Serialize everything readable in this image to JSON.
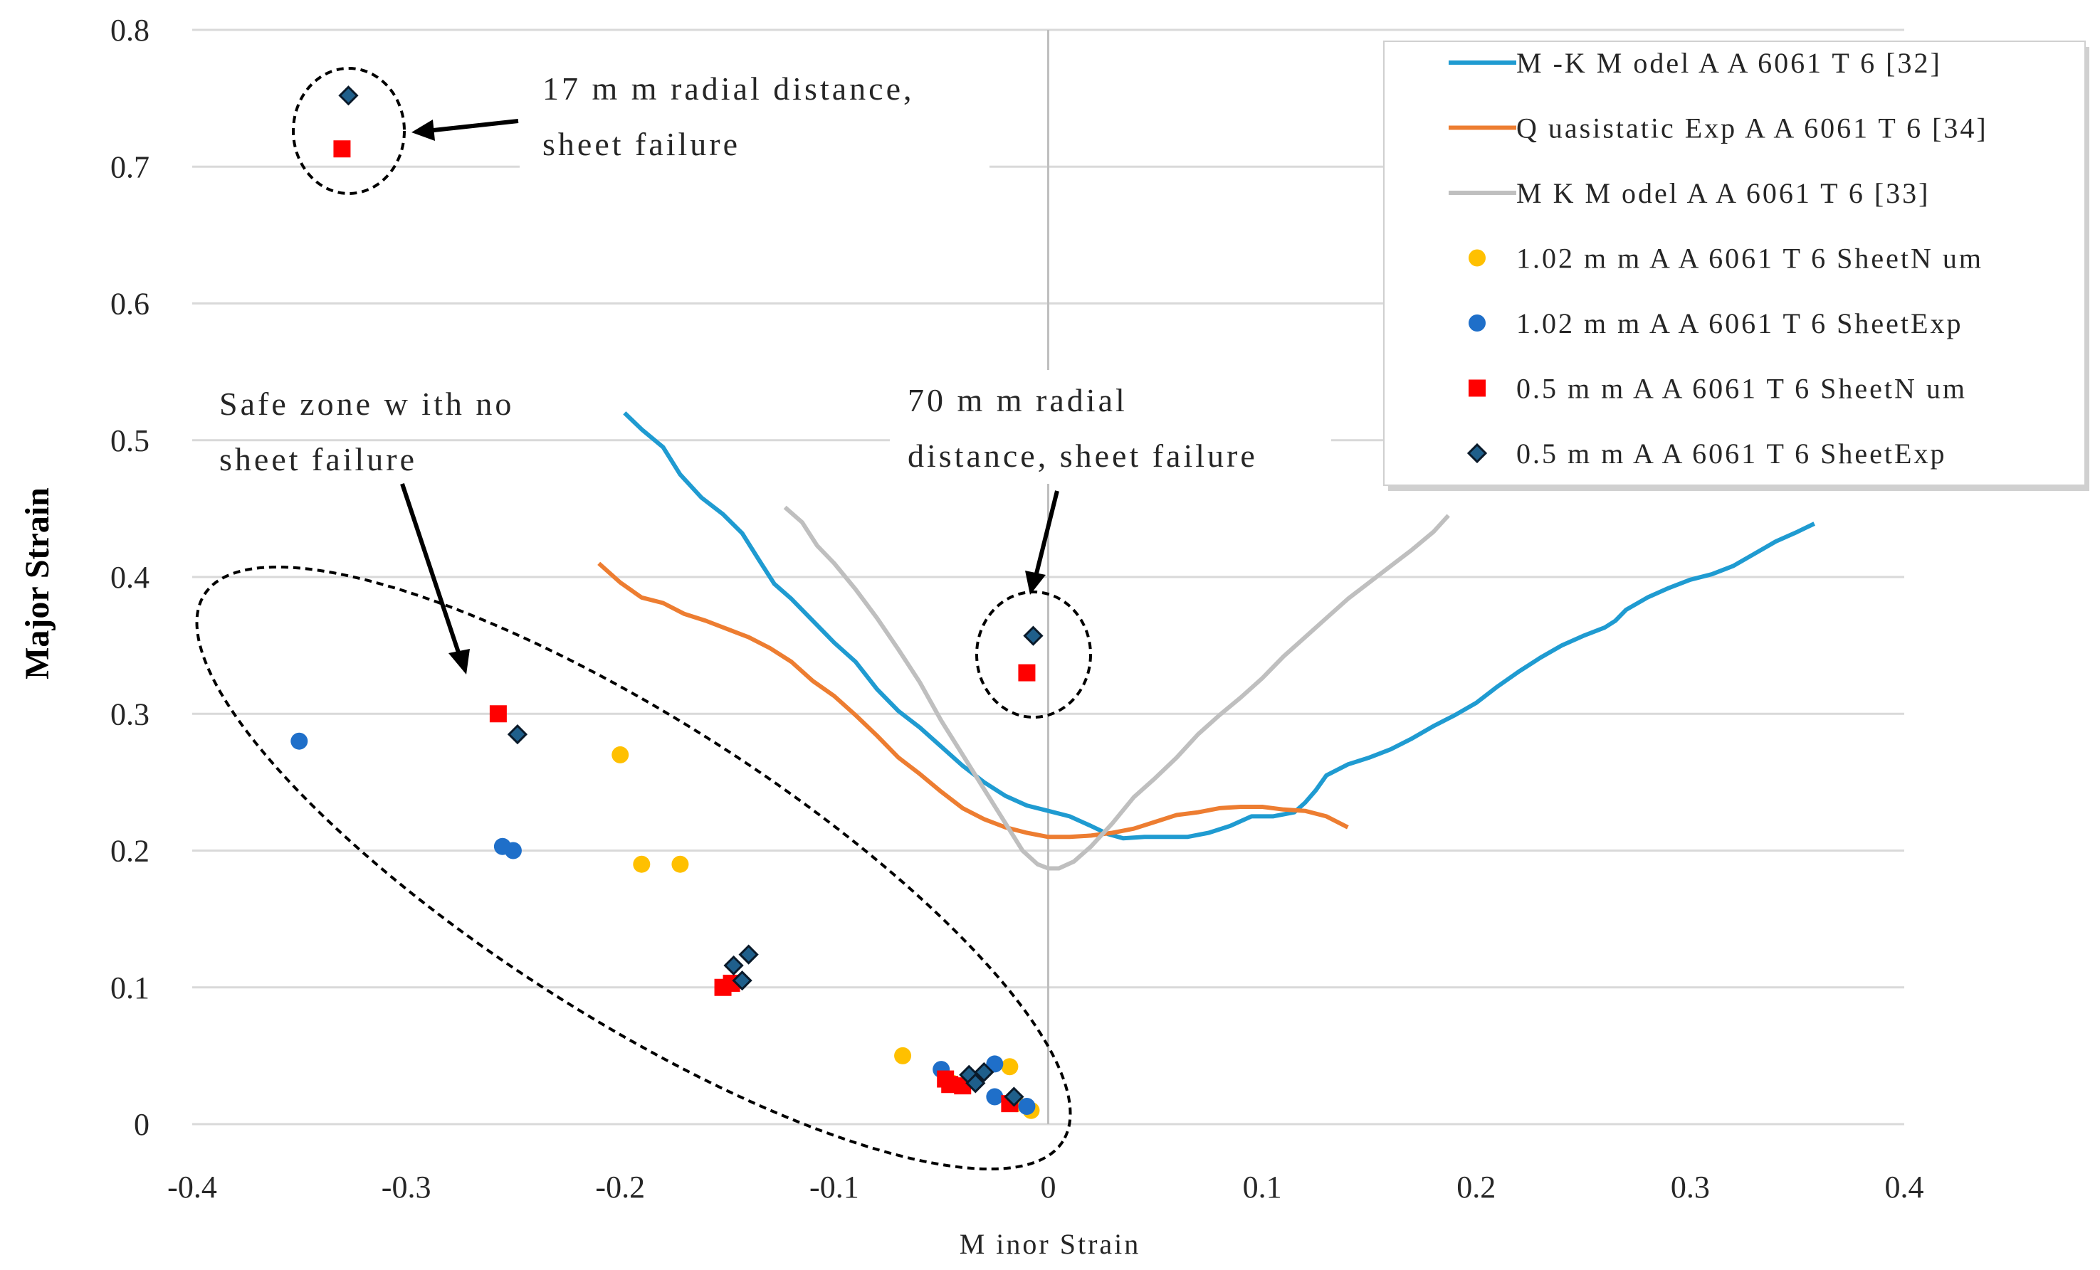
{
  "chart_data": {
    "type": "scatter",
    "title": "",
    "xlabel": "M inor Strain",
    "ylabel": "Major Strain",
    "xlim": [
      -0.4,
      0.4
    ],
    "ylim": [
      0,
      0.8
    ],
    "x_ticks": [
      "-0.4",
      "-0.3",
      "-0.2",
      "-0.1",
      "0",
      "0.1",
      "0.2",
      "0.3",
      "0.4"
    ],
    "y_ticks": [
      "0",
      "0.1",
      "0.2",
      "0.3",
      "0.4",
      "0.5",
      "0.6",
      "0.7",
      "0.8"
    ],
    "grid": "horizontal",
    "legend_position": "top-right",
    "colors": {
      "mk_32": "#1f9bd1",
      "quasi_34": "#ed7d31",
      "mk_33": "#bfbfbf",
      "num_102": "#ffc000",
      "exp_102": "#1f6fc9",
      "num_05": "#ff0000",
      "exp_05": "#1f5f8b",
      "gridline": "#d9d9d9",
      "vline": "#bfbfbf"
    },
    "series": [
      {
        "name": "M -K M odel A A 6061 T 6 [32]",
        "kind": "line",
        "color": "#1f9bd1",
        "points": [
          [
            -0.198,
            0.52
          ],
          [
            -0.19,
            0.508
          ],
          [
            -0.18,
            0.495
          ],
          [
            -0.172,
            0.475
          ],
          [
            -0.162,
            0.458
          ],
          [
            -0.152,
            0.446
          ],
          [
            -0.143,
            0.432
          ],
          [
            -0.135,
            0.412
          ],
          [
            -0.128,
            0.395
          ],
          [
            -0.12,
            0.384
          ],
          [
            -0.11,
            0.368
          ],
          [
            -0.1,
            0.352
          ],
          [
            -0.09,
            0.338
          ],
          [
            -0.08,
            0.318
          ],
          [
            -0.07,
            0.302
          ],
          [
            -0.06,
            0.29
          ],
          [
            -0.05,
            0.276
          ],
          [
            -0.04,
            0.262
          ],
          [
            -0.03,
            0.25
          ],
          [
            -0.02,
            0.24
          ],
          [
            -0.01,
            0.233
          ],
          [
            0,
            0.229
          ],
          [
            0.01,
            0.225
          ],
          [
            0.02,
            0.218
          ],
          [
            0.028,
            0.212
          ],
          [
            0.035,
            0.209
          ],
          [
            0.045,
            0.21
          ],
          [
            0.055,
            0.21
          ],
          [
            0.065,
            0.21
          ],
          [
            0.075,
            0.213
          ],
          [
            0.085,
            0.218
          ],
          [
            0.095,
            0.225
          ],
          [
            0.105,
            0.225
          ],
          [
            0.115,
            0.228
          ],
          [
            0.12,
            0.235
          ],
          [
            0.125,
            0.244
          ],
          [
            0.13,
            0.255
          ],
          [
            0.14,
            0.263
          ],
          [
            0.15,
            0.268
          ],
          [
            0.16,
            0.274
          ],
          [
            0.17,
            0.282
          ],
          [
            0.18,
            0.291
          ],
          [
            0.19,
            0.299
          ],
          [
            0.2,
            0.308
          ],
          [
            0.21,
            0.32
          ],
          [
            0.22,
            0.331
          ],
          [
            0.23,
            0.341
          ],
          [
            0.24,
            0.35
          ],
          [
            0.25,
            0.357
          ],
          [
            0.26,
            0.363
          ],
          [
            0.265,
            0.368
          ],
          [
            0.27,
            0.376
          ],
          [
            0.28,
            0.385
          ],
          [
            0.29,
            0.392
          ],
          [
            0.3,
            0.398
          ],
          [
            0.31,
            0.402
          ],
          [
            0.32,
            0.408
          ],
          [
            0.33,
            0.417
          ],
          [
            0.34,
            0.426
          ],
          [
            0.35,
            0.433
          ],
          [
            0.358,
            0.439
          ]
        ]
      },
      {
        "name": "Q uasistatic Exp A A 6061 T 6 [34]",
        "kind": "line",
        "color": "#ed7d31",
        "points": [
          [
            -0.21,
            0.41
          ],
          [
            -0.2,
            0.396
          ],
          [
            -0.19,
            0.385
          ],
          [
            -0.18,
            0.381
          ],
          [
            -0.17,
            0.373
          ],
          [
            -0.16,
            0.368
          ],
          [
            -0.15,
            0.362
          ],
          [
            -0.14,
            0.356
          ],
          [
            -0.13,
            0.348
          ],
          [
            -0.12,
            0.338
          ],
          [
            -0.11,
            0.324
          ],
          [
            -0.1,
            0.313
          ],
          [
            -0.09,
            0.299
          ],
          [
            -0.08,
            0.284
          ],
          [
            -0.07,
            0.268
          ],
          [
            -0.06,
            0.256
          ],
          [
            -0.05,
            0.243
          ],
          [
            -0.04,
            0.231
          ],
          [
            -0.03,
            0.223
          ],
          [
            -0.02,
            0.217
          ],
          [
            -0.01,
            0.213
          ],
          [
            0,
            0.21
          ],
          [
            0.01,
            0.21
          ],
          [
            0.02,
            0.211
          ],
          [
            0.03,
            0.213
          ],
          [
            0.04,
            0.216
          ],
          [
            0.05,
            0.221
          ],
          [
            0.06,
            0.226
          ],
          [
            0.07,
            0.228
          ],
          [
            0.08,
            0.231
          ],
          [
            0.09,
            0.232
          ],
          [
            0.1,
            0.232
          ],
          [
            0.11,
            0.23
          ],
          [
            0.12,
            0.229
          ],
          [
            0.13,
            0.225
          ],
          [
            0.14,
            0.217
          ]
        ]
      },
      {
        "name": "M K M odel A A 6061 T 6 [33]",
        "kind": "line",
        "color": "#bfbfbf",
        "points": [
          [
            -0.123,
            0.451
          ],
          [
            -0.115,
            0.44
          ],
          [
            -0.108,
            0.423
          ],
          [
            -0.1,
            0.41
          ],
          [
            -0.09,
            0.391
          ],
          [
            -0.08,
            0.37
          ],
          [
            -0.07,
            0.347
          ],
          [
            -0.06,
            0.323
          ],
          [
            -0.05,
            0.295
          ],
          [
            -0.04,
            0.27
          ],
          [
            -0.03,
            0.245
          ],
          [
            -0.02,
            0.22
          ],
          [
            -0.012,
            0.2
          ],
          [
            -0.005,
            0.19
          ],
          [
            0,
            0.187
          ],
          [
            0.005,
            0.187
          ],
          [
            0.012,
            0.192
          ],
          [
            0.02,
            0.203
          ],
          [
            0.03,
            0.22
          ],
          [
            0.04,
            0.239
          ],
          [
            0.05,
            0.253
          ],
          [
            0.06,
            0.268
          ],
          [
            0.07,
            0.285
          ],
          [
            0.08,
            0.299
          ],
          [
            0.09,
            0.312
          ],
          [
            0.1,
            0.326
          ],
          [
            0.11,
            0.342
          ],
          [
            0.12,
            0.356
          ],
          [
            0.13,
            0.37
          ],
          [
            0.14,
            0.384
          ],
          [
            0.15,
            0.396
          ],
          [
            0.16,
            0.408
          ],
          [
            0.17,
            0.42
          ],
          [
            0.18,
            0.433
          ],
          [
            0.187,
            0.445
          ]
        ]
      },
      {
        "name": "1.02 m m A A 6061 T 6 SheetN um",
        "kind": "marker",
        "marker": "circle",
        "color": "#ffc000",
        "points": [
          [
            -0.2,
            0.27
          ],
          [
            -0.19,
            0.19
          ],
          [
            -0.172,
            0.19
          ],
          [
            -0.068,
            0.05
          ],
          [
            -0.045,
            0.03
          ],
          [
            -0.018,
            0.042
          ],
          [
            -0.015,
            0.015
          ],
          [
            -0.008,
            0.01
          ]
        ]
      },
      {
        "name": "1.02 m m A A 6061 T 6 SheetExp",
        "kind": "marker",
        "marker": "circle",
        "color": "#1f6fc9",
        "points": [
          [
            -0.35,
            0.28
          ],
          [
            -0.255,
            0.203
          ],
          [
            -0.25,
            0.2
          ],
          [
            -0.05,
            0.04
          ],
          [
            -0.025,
            0.044
          ],
          [
            -0.025,
            0.02
          ],
          [
            -0.01,
            0.013
          ]
        ]
      },
      {
        "name": "0.5 m m A A 6061 T 6 SheetN um",
        "kind": "marker",
        "marker": "square",
        "color": "#ff0000",
        "points": [
          [
            -0.33,
            0.713
          ],
          [
            -0.257,
            0.3
          ],
          [
            -0.01,
            0.33
          ],
          [
            -0.152,
            0.1
          ],
          [
            -0.148,
            0.103
          ],
          [
            -0.048,
            0.033
          ],
          [
            -0.046,
            0.029
          ],
          [
            -0.04,
            0.028
          ],
          [
            -0.018,
            0.015
          ]
        ]
      },
      {
        "name": "0.5 m m A A 6061 T 6 SheetExp",
        "kind": "marker",
        "marker": "diamond",
        "color": "#1f5f8b",
        "points": [
          [
            -0.327,
            0.752
          ],
          [
            -0.248,
            0.285
          ],
          [
            -0.007,
            0.357
          ],
          [
            -0.14,
            0.124
          ],
          [
            -0.147,
            0.116
          ],
          [
            -0.143,
            0.105
          ],
          [
            -0.037,
            0.036
          ],
          [
            -0.034,
            0.03
          ],
          [
            -0.03,
            0.038
          ],
          [
            -0.016,
            0.02
          ]
        ]
      }
    ],
    "annotations": [
      {
        "lines": [
          "17 m m  radial distance,",
          "sheet failure"
        ]
      },
      {
        "lines": [
          "70 m m  radial",
          "distance, sheet failure"
        ]
      },
      {
        "lines": [
          "Safe zone w ith no",
          "sheet failure"
        ]
      }
    ]
  }
}
